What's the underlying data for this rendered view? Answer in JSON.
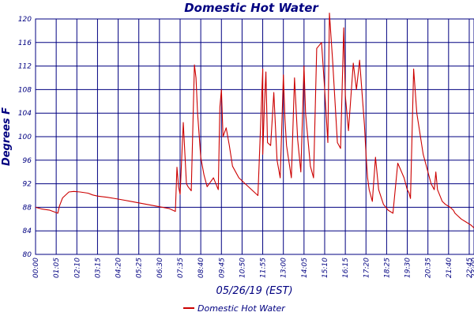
{
  "chart_data": {
    "type": "line",
    "title": "Domestic Hot Water",
    "xlabel": "05/26/19 (EST)",
    "ylabel": "Degrees F",
    "ylim": [
      80,
      120
    ],
    "yticks": [
      80,
      84,
      88,
      92,
      96,
      100,
      104,
      108,
      112,
      116,
      120
    ],
    "xlim": [
      "00:00",
      "23:00"
    ],
    "xticks": [
      "00:00",
      "01:05",
      "02:10",
      "03:15",
      "04:20",
      "05:25",
      "06:30",
      "07:35",
      "08:40",
      "09:45",
      "10:50",
      "11:55",
      "13:00",
      "14:05",
      "15:10",
      "16:15",
      "17:20",
      "18:25",
      "19:30",
      "20:35",
      "21:40",
      "22:45",
      "23:00"
    ],
    "grid": true,
    "legend_position": "bottom",
    "series": [
      {
        "name": "Domestic Hot Water",
        "color": "#cc0000",
        "x": [
          "00:00",
          "00:20",
          "00:45",
          "01:10",
          "01:15",
          "01:25",
          "01:45",
          "02:00",
          "02:20",
          "02:45",
          "03:00",
          "03:15",
          "03:45",
          "04:20",
          "05:00",
          "05:30",
          "06:00",
          "06:30",
          "07:00",
          "07:20",
          "07:25",
          "07:30",
          "07:35",
          "07:45",
          "07:55",
          "08:00",
          "08:10",
          "08:20",
          "08:25",
          "08:30",
          "08:40",
          "08:50",
          "09:00",
          "09:20",
          "09:35",
          "09:40",
          "09:45",
          "09:50",
          "10:00",
          "10:10",
          "10:20",
          "10:40",
          "11:00",
          "11:20",
          "11:40",
          "11:55",
          "11:55",
          "12:00",
          "12:05",
          "12:10",
          "12:20",
          "12:30",
          "12:40",
          "12:50",
          "13:00",
          "13:05",
          "13:10",
          "13:25",
          "13:35",
          "13:45",
          "13:55",
          "14:05",
          "14:10",
          "14:25",
          "14:35",
          "14:45",
          "15:00",
          "15:10",
          "15:20",
          "15:25",
          "15:35",
          "15:50",
          "16:00",
          "16:10",
          "16:15",
          "16:25",
          "16:40",
          "16:50",
          "17:00",
          "17:15",
          "17:20",
          "17:25",
          "17:30",
          "17:35",
          "17:40",
          "17:50",
          "18:00",
          "18:15",
          "18:30",
          "18:45",
          "19:00",
          "19:20",
          "19:30",
          "19:35",
          "19:40",
          "19:50",
          "20:00",
          "20:20",
          "20:45",
          "20:55",
          "21:00",
          "21:05",
          "21:20",
          "21:30",
          "21:45",
          "21:55",
          "22:00",
          "22:10",
          "22:20",
          "22:35",
          "22:50",
          "23:00"
        ],
        "values": [
          88,
          87.7,
          87.5,
          87.0,
          88.2,
          89.6,
          90.6,
          90.7,
          90.6,
          90.4,
          90.1,
          89.9,
          89.7,
          89.4,
          89.0,
          88.7,
          88.4,
          88.1,
          87.8,
          87.3,
          94.8,
          91.5,
          90.2,
          102.4,
          92.0,
          91.5,
          90.8,
          112.2,
          110.0,
          104.0,
          96.5,
          93.5,
          91.5,
          93.0,
          91.0,
          105.0,
          108.0,
          100.0,
          101.5,
          98.5,
          95.0,
          93.0,
          92.0,
          91.0,
          90.0,
          111.5,
          97.0,
          105.0,
          111.0,
          99.0,
          98.5,
          107.5,
          96.0,
          93.0,
          110.5,
          103.0,
          98.5,
          93.0,
          110.0,
          99.5,
          94.0,
          112.0,
          104.0,
          95.0,
          93.0,
          115.0,
          116.0,
          108.0,
          99.0,
          121.0,
          113.0,
          99.0,
          98.0,
          118.5,
          107.0,
          101.0,
          112.5,
          108.0,
          113.0,
          102.0,
          97.0,
          93.0,
          91.0,
          90.0,
          89.0,
          96.5,
          91.0,
          88.5,
          87.5,
          87.0,
          95.5,
          93.0,
          91.0,
          90.5,
          89.5,
          111.5,
          104.0,
          97.0,
          92.0,
          91.0,
          94.0,
          91.0,
          89.0,
          88.5,
          88.0,
          87.5,
          87.0,
          86.5,
          86.0,
          85.5,
          85.0,
          84.5
        ]
      }
    ]
  }
}
